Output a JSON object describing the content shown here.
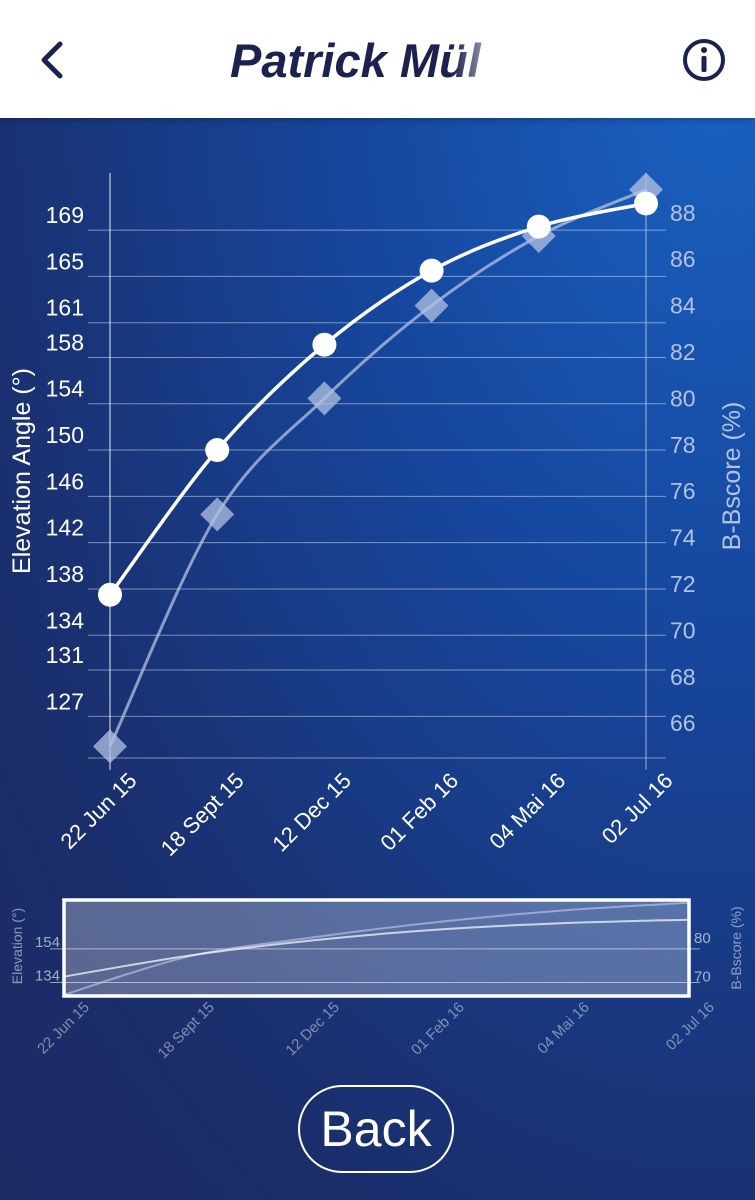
{
  "header": {
    "title": "Patrick Mül",
    "back_icon": "chevron-left-icon",
    "info_icon": "info-circle-icon"
  },
  "footer": {
    "back_label": "Back"
  },
  "colors": {
    "primary_series": "#ffffff",
    "secondary_series": "#b3c2e3",
    "header_text": "#1b2250"
  },
  "chart_data": [
    {
      "type": "line",
      "categories": [
        "22 Jun 15",
        "18 Sept 15",
        "12 Dec 15",
        "01 Feb 16",
        "04 Mai 16",
        "02 Jul 16"
      ],
      "series": [
        {
          "axis": "left",
          "marker": "circle",
          "values": [
            137.5,
            150.0,
            159.1,
            165.5,
            169.3,
            171.3
          ]
        },
        {
          "axis": "right",
          "marker": "diamond",
          "values": [
            65.0,
            75.0,
            80.0,
            84.0,
            87.0,
            89.0
          ]
        }
      ],
      "ylabel": "Elevation Angle (°)",
      "y2label": "B-Bscore (%)",
      "y_ticks": [
        "127",
        "131",
        "134",
        "138",
        "142",
        "146",
        "150",
        "154",
        "158",
        "161",
        "165",
        "169"
      ],
      "y2_ticks": [
        "66",
        "68",
        "70",
        "72",
        "74",
        "76",
        "78",
        "80",
        "82",
        "84",
        "86",
        "88"
      ],
      "ylim": [
        123.4,
        173.5
      ],
      "y2lim": [
        64.5,
        89.5
      ],
      "grid": true
    },
    {
      "type": "line",
      "role": "range-navigator",
      "categories": [
        "22 Jun 15",
        "18 Sept 15",
        "12 Dec 15",
        "01 Feb 16",
        "04 Mai 16",
        "02 Jul 16"
      ],
      "series": [
        {
          "axis": "left",
          "values": [
            137.5,
            150.0,
            159.1,
            165.5,
            169.3,
            171.3
          ]
        },
        {
          "axis": "right",
          "values": [
            65.0,
            75.0,
            80.0,
            84.0,
            87.0,
            89.0
          ]
        }
      ],
      "ylabel": "Elevation (°)",
      "y2label": "B-Bscore (%)",
      "y_ticks": [
        "134",
        "154"
      ],
      "y2_ticks": [
        "70",
        "80"
      ],
      "ylim": [
        126.0,
        183.0
      ],
      "y2lim": [
        64.7,
        89.7
      ]
    }
  ]
}
